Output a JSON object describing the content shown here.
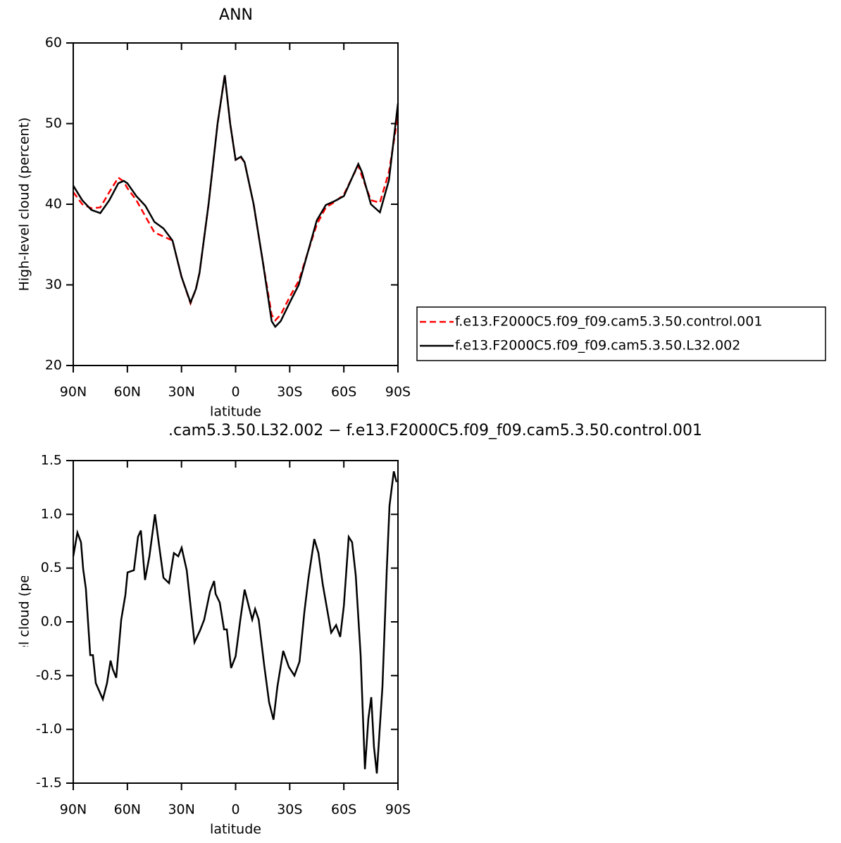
{
  "chart_data": [
    {
      "type": "line",
      "title": "ANN",
      "xlabel": "latitude",
      "ylabel": "High-level cloud (percent)",
      "xlim": [
        90,
        -90
      ],
      "ylim": [
        20,
        60
      ],
      "xticks": [
        {
          "value": 90,
          "label": "90N"
        },
        {
          "value": 60,
          "label": "60N"
        },
        {
          "value": 30,
          "label": "30N"
        },
        0,
        {
          "value": -30,
          "label": "30S"
        },
        {
          "value": -60,
          "label": "60S"
        },
        {
          "value": -90,
          "label": "90S"
        }
      ],
      "yticks": [
        20,
        30,
        40,
        50,
        60
      ],
      "legend": "right",
      "x": [
        90,
        85,
        80,
        75,
        70,
        65,
        62,
        60,
        55,
        50,
        45,
        40,
        35,
        30,
        25,
        22,
        20,
        15,
        10,
        6,
        3,
        0,
        -3,
        -5,
        -10,
        -15,
        -20,
        -22,
        -25,
        -30,
        -35,
        -40,
        -45,
        -50,
        -55,
        -60,
        -65,
        -68,
        -70,
        -75,
        -80,
        -85,
        -90
      ],
      "series": [
        {
          "name": "f.e13.F2000C5.f09_f09.cam5.3.50.control.001",
          "color": "#ff0000",
          "line_style": "dashed",
          "values": [
            41.5,
            40,
            39.5,
            39.6,
            41.5,
            43.3,
            42.8,
            42,
            40.5,
            38.5,
            36.5,
            36,
            35.5,
            31,
            27.7,
            29.5,
            31.5,
            40,
            50,
            56,
            50,
            45.5,
            45.8,
            45.2,
            40,
            33,
            26.3,
            25.6,
            26.3,
            28.5,
            30.5,
            34,
            37.5,
            39.6,
            40.3,
            41.2,
            43.5,
            44.8,
            43.5,
            40.5,
            40.2,
            44,
            51
          ]
        },
        {
          "name": "f.e13.F2000C5.f09_f09.cam5.3.50.L32.002",
          "color": "#000000",
          "line_style": "solid",
          "values": [
            42.3,
            40.5,
            39.3,
            38.9,
            40.5,
            42.6,
            42.9,
            42.6,
            41,
            39.8,
            37.8,
            37,
            35.5,
            31,
            27.8,
            29.5,
            31.5,
            40,
            50,
            56,
            50,
            45.5,
            45.9,
            45.2,
            40,
            33,
            25.5,
            24.8,
            25.5,
            27.8,
            30,
            34,
            38,
            39.9,
            40.4,
            41,
            43.5,
            45,
            44,
            40,
            39,
            43,
            52.5
          ]
        }
      ]
    },
    {
      "type": "line",
      "title": ".cam5.3.50.L32.002 − f.e13.F2000C5.f09_f09.cam5.3.50.control.001",
      "xlabel": "latitude",
      "ylabel": "High-level cloud (percent)",
      "xlim": [
        90,
        -90
      ],
      "ylim": [
        -1.5,
        1.5
      ],
      "xticks": [
        {
          "value": 90,
          "label": "90N"
        },
        {
          "value": 60,
          "label": "60N"
        },
        {
          "value": 30,
          "label": "30N"
        },
        0,
        {
          "value": -30,
          "label": "30S"
        },
        {
          "value": -60,
          "label": "60S"
        },
        {
          "value": -90,
          "label": "90S"
        }
      ],
      "yticks": [
        1.5,
        {
          "value": 1,
          "label": "1.0"
        },
        0.5,
        {
          "value": 0,
          "label": "0.0"
        },
        -0.5,
        {
          "value": -1,
          "label": "-1.0"
        },
        -1.5
      ],
      "x": [
        90,
        87.7,
        85.7,
        84.5,
        83,
        80.6,
        79.1,
        77.5,
        73.6,
        71.3,
        69.3,
        68.1,
        66.2,
        63.4,
        61.1,
        59.9,
        56.4,
        54.1,
        52.5,
        50.2,
        47.8,
        44.7,
        42.4,
        40,
        36.9,
        34.2,
        31.8,
        29.9,
        27.1,
        22.8,
        19.7,
        17.4,
        14.2,
        11.9,
        11.1,
        8.8,
        6.4,
        4.9,
        2.5,
        0,
        -2.6,
        -5,
        -7.7,
        -9.2,
        -10.8,
        -12.8,
        -15.9,
        -18.6,
        -21,
        -23.2,
        -26.4,
        -29.5,
        -32.6,
        -35.4,
        -38.1,
        -40.4,
        -43.6,
        -45.9,
        -48.3,
        -53,
        -55.7,
        -58,
        -60,
        -62.7,
        -64.6,
        -66.6,
        -69.3,
        -71.7,
        -73.6,
        -75.2,
        -76.7,
        -78.3,
        -81.4,
        -83.8,
        -85.3,
        -87.7,
        -89.2
      ],
      "series": [
        {
          "color": "#000000",
          "line_style": "solid",
          "values": [
            0.61,
            0.83,
            0.74,
            0.49,
            0.31,
            -0.31,
            -0.31,
            -0.57,
            -0.72,
            -0.57,
            -0.36,
            -0.44,
            -0.52,
            0.02,
            0.25,
            0.46,
            0.48,
            0.79,
            0.85,
            0.39,
            0.61,
            1.0,
            0.71,
            0.41,
            0.36,
            0.64,
            0.61,
            0.69,
            0.48,
            -0.19,
            -0.08,
            0.02,
            0.28,
            0.38,
            0.26,
            0.18,
            -0.07,
            -0.07,
            -0.43,
            -0.32,
            0.02,
            0.3,
            0.12,
            0.02,
            0.12,
            0.02,
            -0.41,
            -0.75,
            -0.91,
            -0.6,
            -0.27,
            -0.42,
            -0.5,
            -0.37,
            0.09,
            0.41,
            0.77,
            0.64,
            0.35,
            -0.1,
            -0.03,
            -0.14,
            0.15,
            0.79,
            0.74,
            0.43,
            -0.31,
            -1.37,
            -0.9,
            -0.7,
            -1.16,
            -1.41,
            -0.6,
            0.48,
            1.08,
            1.4,
            1.3
          ]
        }
      ]
    }
  ]
}
